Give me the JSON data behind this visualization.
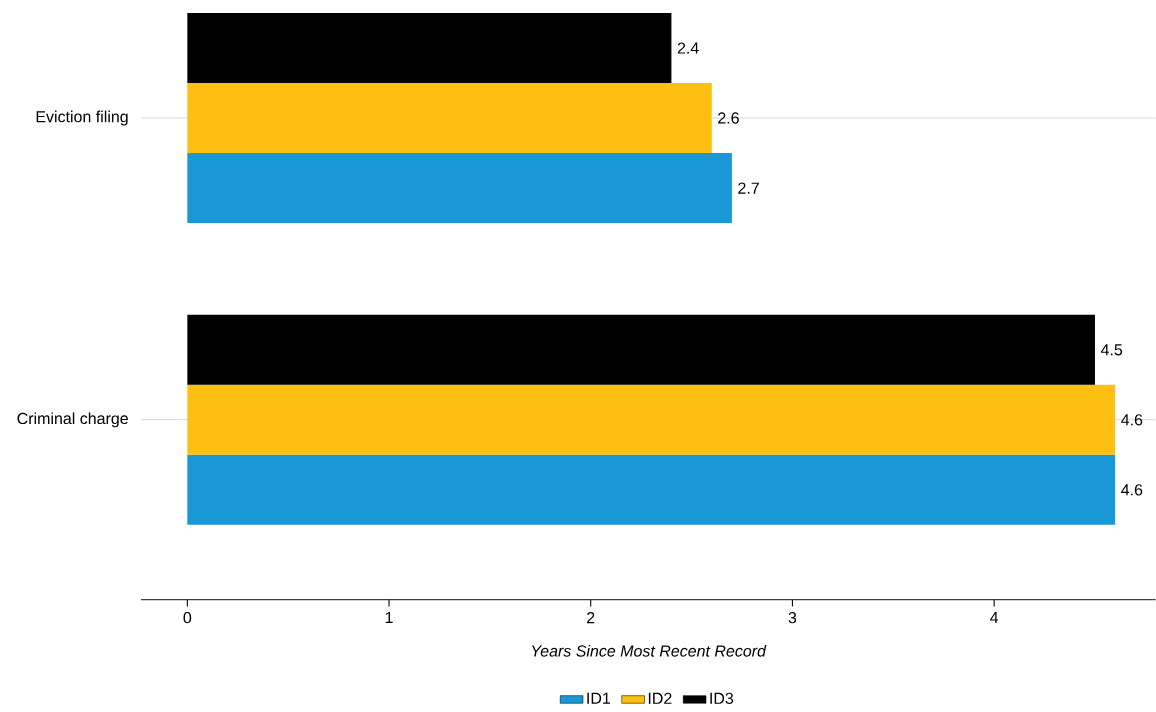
{
  "chart_data": {
    "type": "bar",
    "orientation": "horizontal",
    "xlabel": "Years Since Most Recent Record",
    "categories": [
      "Eviction filing",
      "Criminal charge"
    ],
    "series": [
      {
        "name": "ID1",
        "color": "#1a98d5",
        "values": [
          2.7,
          4.6
        ]
      },
      {
        "name": "ID2",
        "color": "#fdbf11",
        "values": [
          2.6,
          4.6
        ]
      },
      {
        "name": "ID3",
        "color": "#000000",
        "values": [
          2.4,
          4.5
        ]
      }
    ],
    "xlim": [
      -0.23,
      4.8
    ],
    "xticks": [
      0,
      1,
      2,
      3,
      4
    ],
    "grid": "y",
    "legend": "bottom",
    "data_labels": true
  }
}
